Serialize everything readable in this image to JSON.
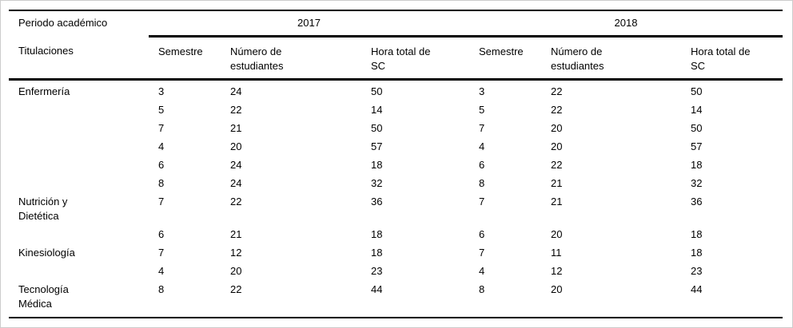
{
  "page": {
    "background_color": "#ffffff",
    "outer_border_color": "#cccccc",
    "rule_color": "#000000",
    "text_color": "#000000"
  },
  "table": {
    "header": {
      "period_label": "Periodo académico",
      "titulaciones_label": "Titulaciones",
      "years": [
        "2017",
        "2018"
      ],
      "sub_columns": [
        "Semestre",
        "Número de estudiantes",
        "Hora total de SC"
      ]
    },
    "rows": [
      {
        "titulacion": "Enfermería",
        "cells": [
          "3",
          "24",
          "50",
          "3",
          "22",
          "50"
        ]
      },
      {
        "titulacion": "",
        "cells": [
          "5",
          "22",
          "14",
          "5",
          "22",
          "14"
        ]
      },
      {
        "titulacion": "",
        "cells": [
          "7",
          "21",
          "50",
          "7",
          "20",
          "50"
        ]
      },
      {
        "titulacion": "",
        "cells": [
          "4",
          "20",
          "57",
          "4",
          "20",
          "57"
        ]
      },
      {
        "titulacion": "",
        "cells": [
          "6",
          "24",
          "18",
          "6",
          "22",
          "18"
        ]
      },
      {
        "titulacion": "",
        "cells": [
          "8",
          "24",
          "32",
          "8",
          "21",
          "32"
        ]
      },
      {
        "titulacion": "Nutrición y Dietética",
        "cells": [
          "7",
          "22",
          "36",
          "7",
          "21",
          "36"
        ]
      },
      {
        "titulacion": "",
        "cells": [
          "6",
          "21",
          "18",
          "6",
          "20",
          "18"
        ]
      },
      {
        "titulacion": "Kinesiología",
        "cells": [
          "7",
          "12",
          "18",
          "7",
          "11",
          "18"
        ]
      },
      {
        "titulacion": "",
        "cells": [
          "4",
          "20",
          "23",
          "4",
          "12",
          "23"
        ]
      },
      {
        "titulacion": "Tecnología Médica",
        "cells": [
          "8",
          "22",
          "44",
          "8",
          "20",
          "44"
        ]
      }
    ]
  },
  "chart_data": {
    "type": "table",
    "title": "",
    "column_headers": [
      "Titulaciones",
      "2017 Semestre",
      "2017 Número de estudiantes",
      "2017 Hora total de SC",
      "2018 Semestre",
      "2018 Número de estudiantes",
      "2018 Hora total de SC"
    ],
    "rows": [
      [
        "Enfermería",
        3,
        24,
        50,
        3,
        22,
        50
      ],
      [
        "",
        5,
        22,
        14,
        5,
        22,
        14
      ],
      [
        "",
        7,
        21,
        50,
        7,
        20,
        50
      ],
      [
        "",
        4,
        20,
        57,
        4,
        20,
        57
      ],
      [
        "",
        6,
        24,
        18,
        6,
        22,
        18
      ],
      [
        "",
        8,
        24,
        32,
        8,
        21,
        32
      ],
      [
        "Nutrición y Dietética",
        7,
        22,
        36,
        7,
        21,
        36
      ],
      [
        "",
        6,
        21,
        18,
        6,
        20,
        18
      ],
      [
        "Kinesiología",
        7,
        12,
        18,
        7,
        11,
        18
      ],
      [
        "",
        4,
        20,
        23,
        4,
        12,
        23
      ],
      [
        "Tecnología Médica",
        8,
        22,
        44,
        8,
        20,
        44
      ]
    ]
  }
}
